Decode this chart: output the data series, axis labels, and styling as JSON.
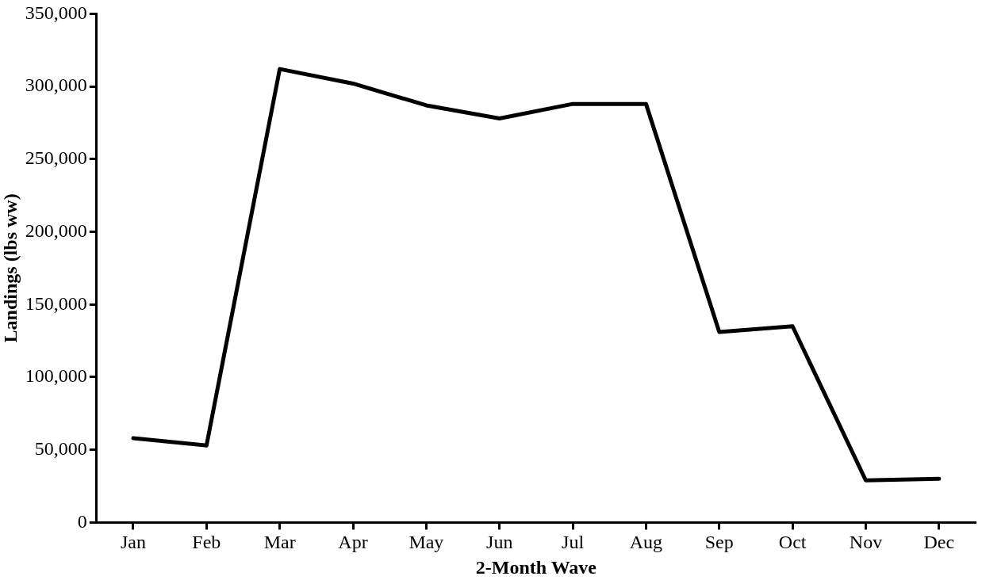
{
  "chart_data": {
    "type": "line",
    "xlabel": "2-Month Wave",
    "ylabel": "Landings (lbs ww)",
    "categories": [
      "Jan",
      "Feb",
      "Mar",
      "Apr",
      "May",
      "Jun",
      "Jul",
      "Aug",
      "Sep",
      "Oct",
      "Nov",
      "Dec"
    ],
    "series": [
      {
        "color": "#000000",
        "values": [
          58000,
          53000,
          312000,
          302000,
          287000,
          278000,
          288000,
          288000,
          131000,
          135000,
          29000,
          30000
        ]
      }
    ],
    "ylim": [
      0,
      350000
    ],
    "yticks": [
      {
        "value": 0,
        "label": "0"
      },
      {
        "value": 50000,
        "label": "50,000"
      },
      {
        "value": 100000,
        "label": "100,000"
      },
      {
        "value": 150000,
        "label": "150,000"
      },
      {
        "value": 200000,
        "label": "200,000"
      },
      {
        "value": 250000,
        "label": "250,000"
      },
      {
        "value": 300000,
        "label": "300,000"
      },
      {
        "value": 350000,
        "label": "350,000"
      }
    ],
    "grid": false,
    "legend": false,
    "marker": "none",
    "line_style": "solid"
  }
}
